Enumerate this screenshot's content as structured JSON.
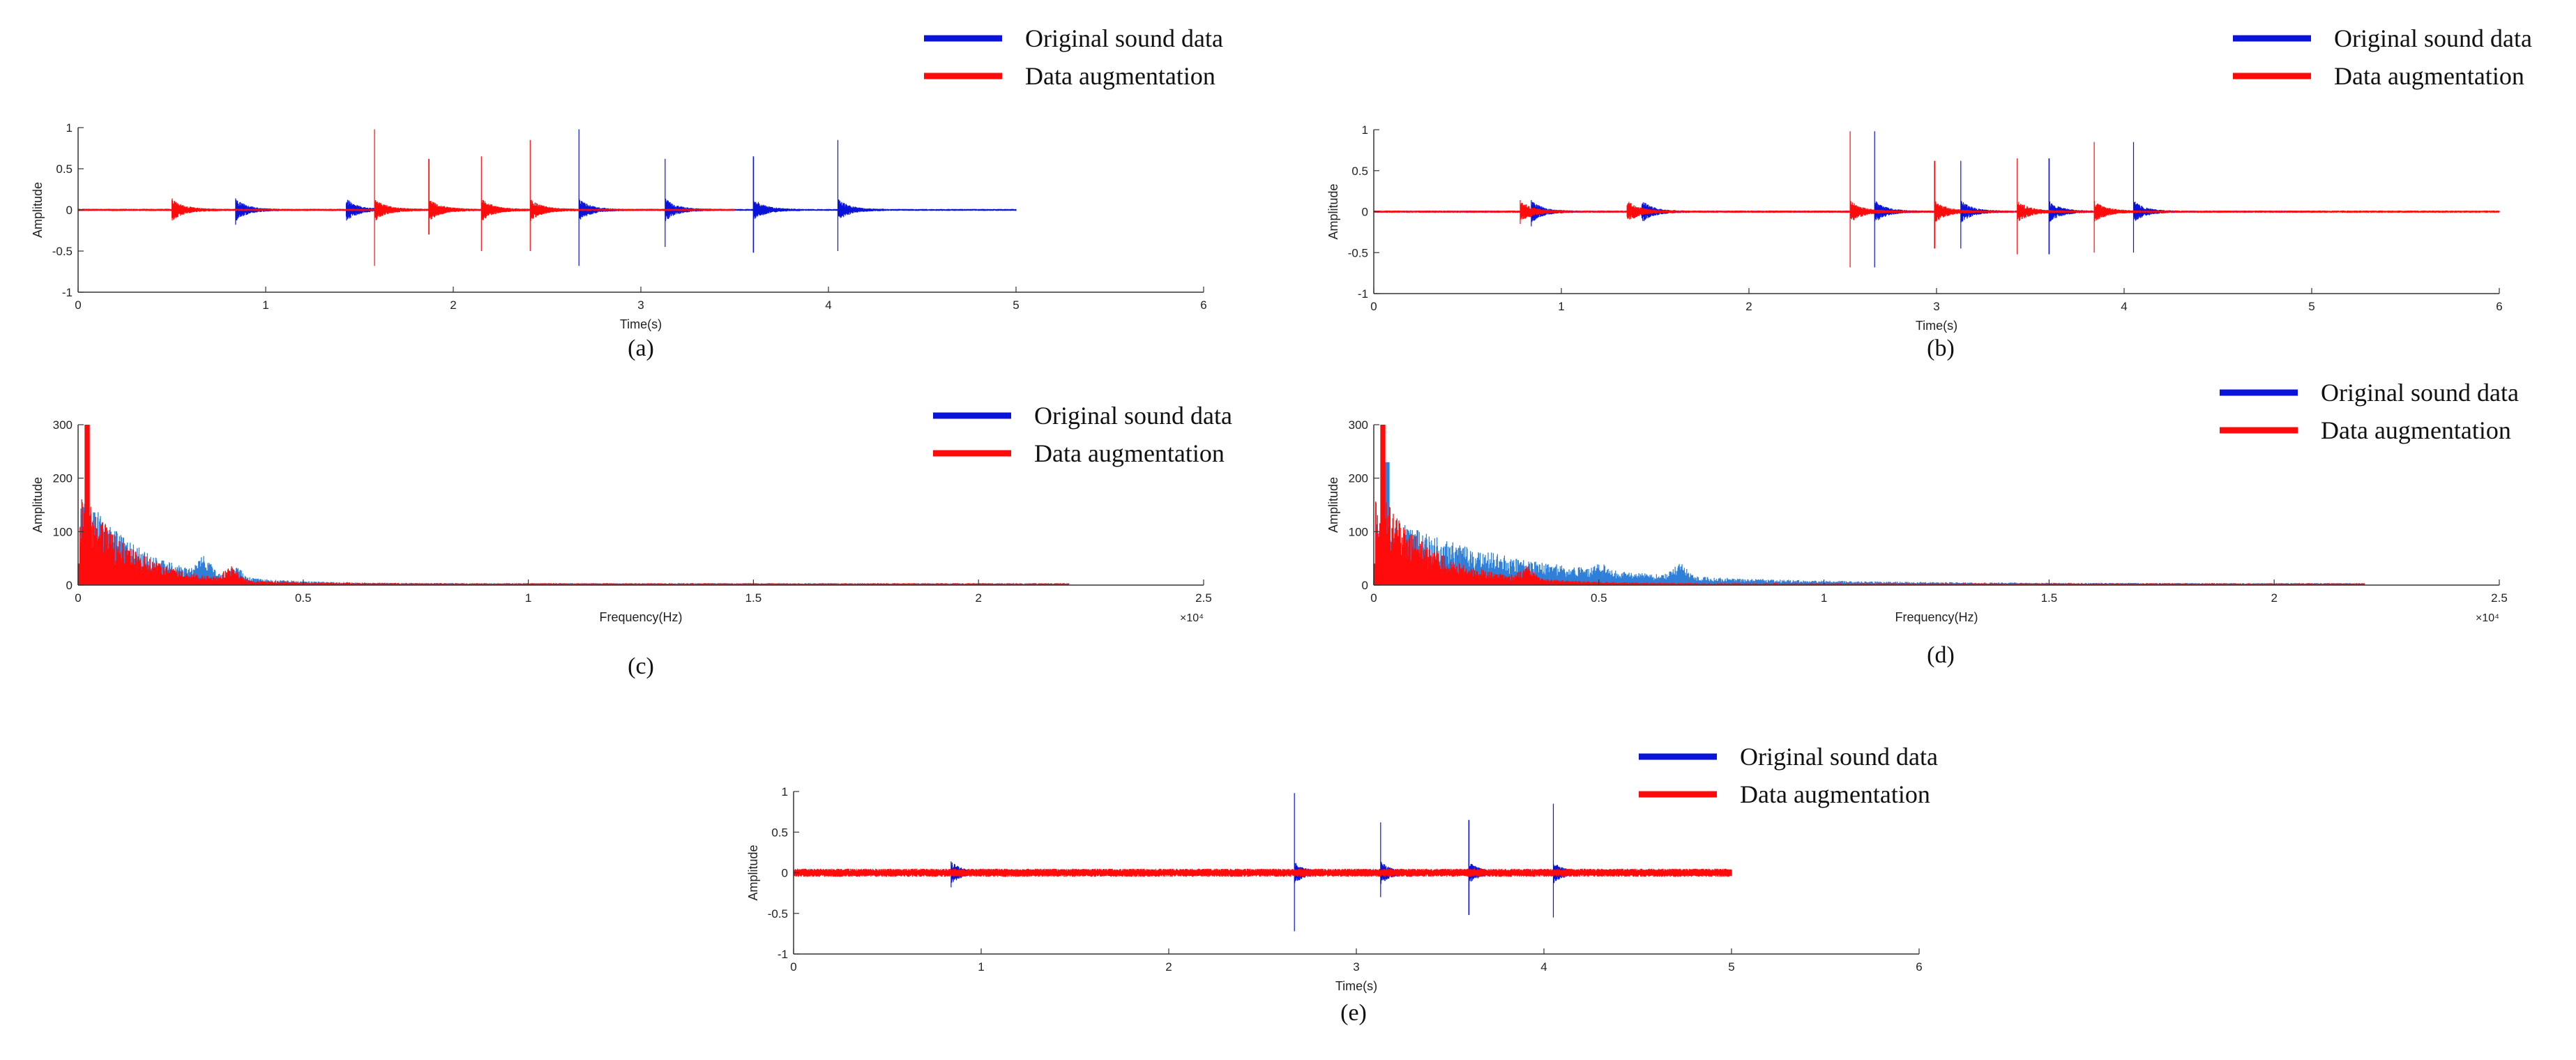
{
  "colors": {
    "original": "#0a14d8",
    "augmented": "#ff0b0b",
    "original_light": "#2f7fd9",
    "axis": "#333333"
  },
  "chart_data": [
    {
      "id": "a",
      "type": "line",
      "caption": "(a)",
      "xlabel": "Time(s)",
      "ylabel": "Amplitude",
      "xlim": [
        0,
        6
      ],
      "ylim": [
        -1,
        1
      ],
      "xticks": [
        0,
        1,
        2,
        3,
        4,
        5,
        6
      ],
      "xtick_labels": [
        "0",
        "1",
        "2",
        "3",
        "4",
        "5",
        "6"
      ],
      "yticks": [
        -1,
        -0.5,
        0,
        0.5,
        1
      ],
      "ytick_labels": [
        "-1",
        "-0.5",
        "0",
        "0.5",
        "1"
      ],
      "legend": {
        "position": "top-right",
        "entries": [
          "Original sound data",
          "Data augmentation"
        ]
      },
      "series": [
        {
          "name": "Original sound data",
          "color_key": "original",
          "x_range": [
            0,
            5
          ],
          "noise": 0.012,
          "events": [
            [
              0.84,
              0.14,
              -0.18
            ],
            [
              1.43,
              0.08,
              -0.08
            ],
            [
              2.67,
              0.98,
              -0.68
            ],
            [
              3.13,
              0.62,
              -0.45
            ],
            [
              3.6,
              0.65,
              -0.52
            ],
            [
              4.05,
              0.85,
              -0.5
            ]
          ]
        },
        {
          "name": "Data augmentation",
          "color_key": "augmented",
          "x_range": [
            0,
            3.5
          ],
          "noise": 0.014,
          "events": [
            [
              0.5,
              0.12,
              -0.1
            ],
            [
              1.58,
              0.98,
              -0.68
            ],
            [
              1.87,
              0.62,
              -0.3
            ],
            [
              2.15,
              0.65,
              -0.5
            ],
            [
              2.41,
              0.85,
              -0.5
            ]
          ]
        }
      ]
    },
    {
      "id": "b",
      "type": "line",
      "caption": "(b)",
      "xlabel": "Time(s)",
      "ylabel": "Amplitude",
      "xlim": [
        0,
        6
      ],
      "ylim": [
        -1,
        1
      ],
      "xticks": [
        0,
        1,
        2,
        3,
        4,
        5,
        6
      ],
      "xtick_labels": [
        "0",
        "1",
        "2",
        "3",
        "4",
        "5",
        "6"
      ],
      "yticks": [
        -1,
        -0.5,
        0,
        0.5,
        1
      ],
      "ytick_labels": [
        "-1",
        "-0.5",
        "0",
        "0.5",
        "1"
      ],
      "legend": {
        "position": "top-right",
        "entries": [
          "Original sound data",
          "Data augmentation"
        ]
      },
      "series": [
        {
          "name": "Original sound data",
          "color_key": "original",
          "x_range": [
            0,
            5
          ],
          "noise": 0.012,
          "events": [
            [
              0.84,
              0.14,
              -0.18
            ],
            [
              1.43,
              0.08,
              -0.08
            ],
            [
              2.67,
              0.98,
              -0.68
            ],
            [
              3.13,
              0.62,
              -0.45
            ],
            [
              3.6,
              0.65,
              -0.52
            ],
            [
              4.05,
              0.85,
              -0.5
            ]
          ]
        },
        {
          "name": "Data augmentation",
          "color_key": "augmented",
          "x_range": [
            0,
            6
          ],
          "noise": 0.014,
          "events": [
            [
              0.78,
              0.14,
              -0.15
            ],
            [
              1.35,
              0.08,
              -0.06
            ],
            [
              2.54,
              0.98,
              -0.68
            ],
            [
              2.99,
              0.62,
              -0.45
            ],
            [
              3.43,
              0.65,
              -0.52
            ],
            [
              3.84,
              0.85,
              -0.5
            ]
          ]
        }
      ]
    },
    {
      "id": "c",
      "type": "area",
      "caption": "(c)",
      "xlabel": "Frequency(Hz)",
      "ylabel": "Amplitude",
      "x_multiplier": "×10⁴",
      "xlim": [
        0,
        2.5
      ],
      "ylim": [
        0,
        300
      ],
      "xticks": [
        0,
        0.5,
        1,
        1.5,
        2,
        2.5
      ],
      "xtick_labels": [
        "0",
        "0.5",
        "1",
        "1.5",
        "2",
        "2.5"
      ],
      "yticks": [
        0,
        100,
        200,
        300
      ],
      "ytick_labels": [
        "0",
        "100",
        "200",
        "300"
      ],
      "legend": {
        "position": "top-right",
        "entries": [
          "Original sound data",
          "Data augmentation"
        ]
      },
      "series": [
        {
          "name": "Original sound data",
          "color_key": "original_light",
          "x_range": [
            0,
            2.2
          ],
          "peak": 300,
          "peak_x": 0.02,
          "decay": 0.13,
          "floor": 3,
          "bumps": [
            [
              0.28,
              25
            ],
            [
              0.35,
              15
            ]
          ]
        },
        {
          "name": "Data augmentation",
          "color_key": "augmented",
          "x_range": [
            0,
            2.2
          ],
          "peak": 300,
          "peak_x": 0.02,
          "decay": 0.11,
          "floor": 3,
          "bumps": [
            [
              0.34,
              20
            ]
          ]
        }
      ]
    },
    {
      "id": "d",
      "type": "area",
      "caption": "(d)",
      "xlabel": "Frequency(Hz)",
      "ylabel": "Amplitude",
      "x_multiplier": "×10⁴",
      "xlim": [
        0,
        2.5
      ],
      "ylim": [
        0,
        300
      ],
      "xticks": [
        0,
        0.5,
        1,
        1.5,
        2,
        2.5
      ],
      "xtick_labels": [
        "0",
        "0.5",
        "1",
        "1.5",
        "2",
        "2.5"
      ],
      "yticks": [
        0,
        100,
        200,
        300
      ],
      "ytick_labels": [
        "0",
        "100",
        "200",
        "300"
      ],
      "legend": {
        "position": "top-right",
        "entries": [
          "Original sound data",
          "Data augmentation"
        ]
      },
      "series": [
        {
          "name": "Original sound data",
          "color_key": "original_light",
          "x_range": [
            0,
            2.2
          ],
          "peak": 230,
          "peak_x": 0.03,
          "decay": 0.3,
          "floor": 3,
          "bumps": [
            [
              0.68,
              20
            ],
            [
              0.5,
              12
            ]
          ]
        },
        {
          "name": "Data augmentation",
          "color_key": "augmented",
          "x_range": [
            0,
            2.2
          ],
          "peak": 300,
          "peak_x": 0.02,
          "decay": 0.12,
          "floor": 3,
          "bumps": [
            [
              0.34,
              18
            ]
          ]
        }
      ]
    },
    {
      "id": "e",
      "type": "line",
      "caption": "(e)",
      "xlabel": "Time(s)",
      "ylabel": "Amplitude",
      "xlim": [
        0,
        6
      ],
      "ylim": [
        -1,
        1
      ],
      "xticks": [
        0,
        1,
        2,
        3,
        4,
        5,
        6
      ],
      "xtick_labels": [
        "0",
        "1",
        "2",
        "3",
        "4",
        "5",
        "6"
      ],
      "yticks": [
        -1,
        -0.5,
        0,
        0.5,
        1
      ],
      "ytick_labels": [
        "-1",
        "-0.5",
        "0",
        "0.5",
        "1"
      ],
      "legend": {
        "position": "top-right",
        "entries": [
          "Original sound data",
          "Data augmentation"
        ]
      },
      "series": [
        {
          "name": "Original sound data",
          "color_key": "original",
          "x_range": [
            0,
            5
          ],
          "noise": 0.012,
          "events": [
            [
              0.84,
              0.14,
              -0.18
            ],
            [
              2.67,
              0.98,
              -0.72
            ],
            [
              3.13,
              0.62,
              -0.3
            ],
            [
              3.6,
              0.65,
              -0.52
            ],
            [
              4.05,
              0.85,
              -0.55
            ]
          ]
        },
        {
          "name": "Data augmentation",
          "color_key": "augmented",
          "x_range": [
            0,
            5
          ],
          "noise": 0.05,
          "events": []
        }
      ]
    }
  ]
}
